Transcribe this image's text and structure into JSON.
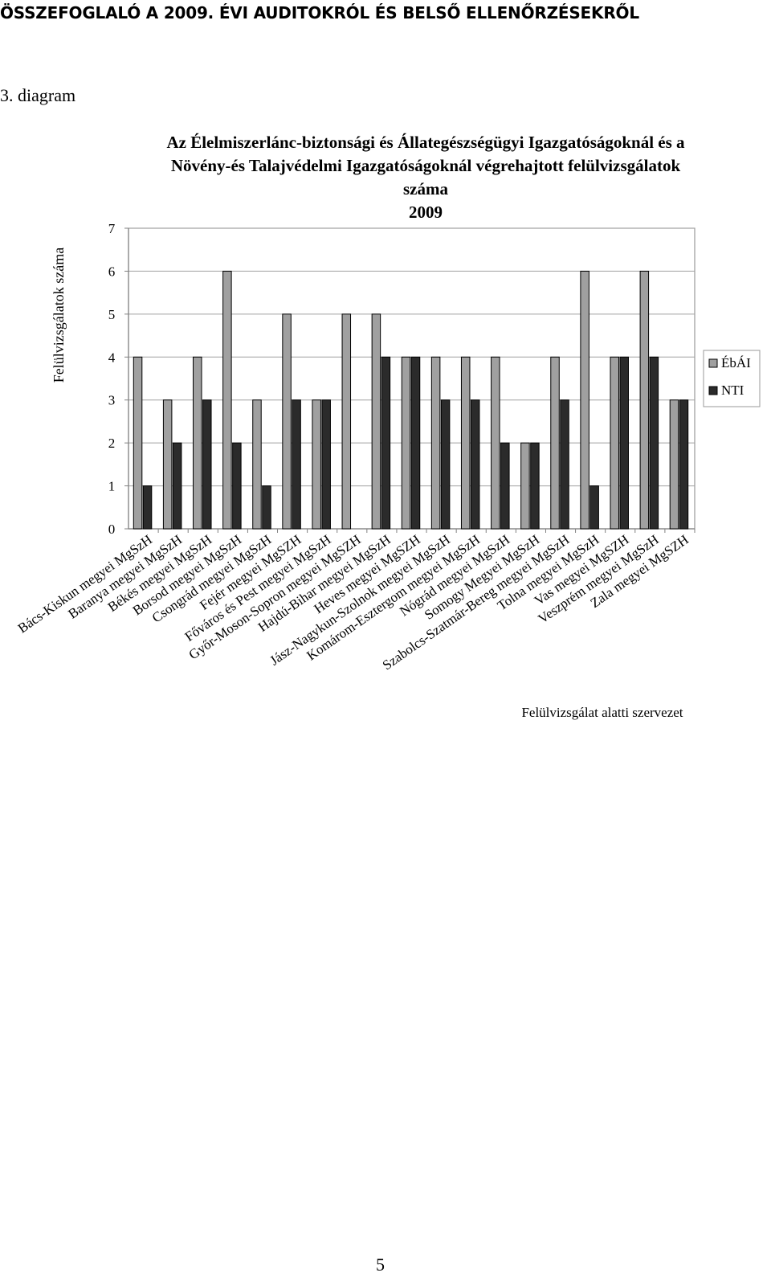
{
  "document": {
    "header": "ÖSSZEFOGLALÓ A 2009. ÉVI AUDITOKRÓL ÉS BELSŐ ELLENŐRZÉSEKRŐL",
    "caption": "3. diagram",
    "page_number": "5"
  },
  "chart_data": {
    "type": "bar",
    "title_lines": [
      "Az Élelmiszerlánc-biztonsági és Állategészségügyi Igazgatóságoknál és a",
      "Növény-és Talajvédelmi Igazgatóságoknál végrehajtott felülvizsgálatok",
      "száma",
      "2009"
    ],
    "ylabel": "Felülvizsgálatok száma",
    "xlabel": "Felülvizsgálat alatti szervezet",
    "ylim": [
      0,
      7
    ],
    "yticks": [
      0,
      1,
      2,
      3,
      4,
      5,
      6,
      7
    ],
    "grid": true,
    "legend_position": "right",
    "categories": [
      "Bács-Kiskun megyei MgSzH",
      "Baranya megyei MgSzH",
      "Békés megyei MgSzH",
      "Borsod megyei MgSzH",
      "Csongrád megyei MgSzH",
      "Fejér megyei MgSZH",
      "Főváros és Pest megyei MgSzH",
      "Győr-Moson-Sopron megyei MgSZH",
      "Hajdú-Bihar megyei MgSzH",
      "Heves megyei MgSZH",
      "Jász-Nagykun-Szolnok megyei MgSzH",
      "Komárom-Esztergom megyei MgSzH",
      "Nógrád megyei MgSzH",
      "Somogy Megyei MgSzH",
      "Szabolcs-Szatmár-Bereg megyei MgSzH",
      "Tolna megyei MgSzH",
      "Vas megyei MgSZH",
      "Veszprém megyei MgSzH",
      "Zala megyei MgSZH"
    ],
    "series": [
      {
        "name": "ÉbÁI",
        "color": "#a0a0a0",
        "values": [
          4,
          3,
          4,
          6,
          3,
          5,
          3,
          5,
          5,
          4,
          4,
          4,
          4,
          2,
          4,
          6,
          4,
          6,
          3
        ]
      },
      {
        "name": "NTI",
        "color": "#2b2b2b",
        "values": [
          1,
          2,
          3,
          2,
          1,
          3,
          3,
          0,
          4,
          4,
          3,
          3,
          2,
          2,
          3,
          1,
          4,
          4,
          3
        ]
      }
    ]
  }
}
